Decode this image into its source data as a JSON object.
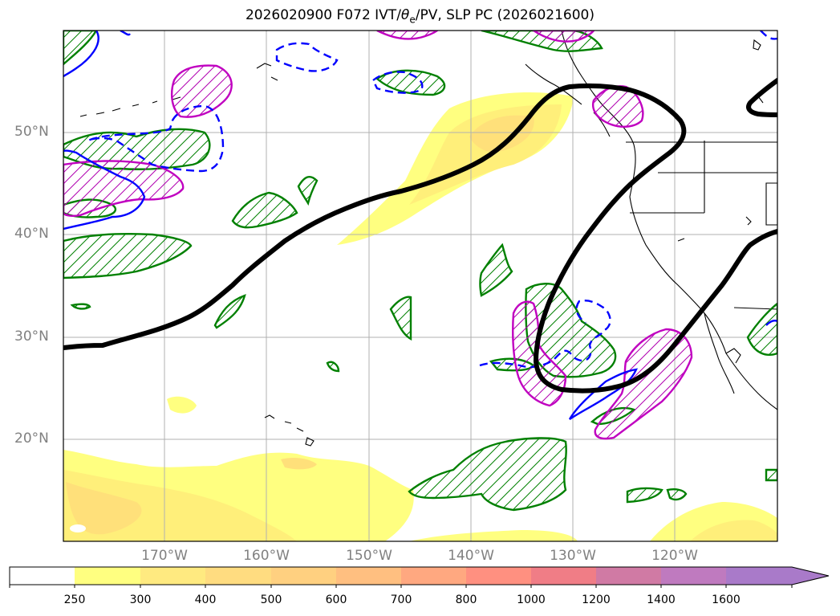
{
  "title": {
    "prefix": "2026020900 F072 IVT/",
    "theta": "θ",
    "theta_sub": "e",
    "suffix": "/PV, SLP PC (2026021600)"
  },
  "map": {
    "projection": "plate carree",
    "lon_range": [
      -180,
      -110
    ],
    "lat_range": [
      10,
      60
    ],
    "gridlines": true
  },
  "lat_labels": [
    "50°N",
    "40°N",
    "30°N",
    "20°N"
  ],
  "lon_labels": [
    "170°W",
    "160°W",
    "150°W",
    "140°W",
    "130°W",
    "120°W"
  ],
  "fields": {
    "ivt_fill": "yellow-orange filled contours (250–400)",
    "theta_e_contours": {
      "color": "#008000",
      "hatch": "/"
    },
    "pv_contours": {
      "color": "#c000c0",
      "hatch": "/"
    },
    "dashed_contours": {
      "color": "#0000ff"
    },
    "slp_pc_contour": {
      "color": "#000000"
    }
  },
  "colorbar": {
    "levels": [
      "250",
      "300",
      "400",
      "500",
      "600",
      "700",
      "800",
      "1000",
      "1200",
      "1400",
      "1600"
    ],
    "colors": [
      "#ffffff",
      "#ffff80",
      "#ffe680",
      "#ffd880",
      "#ffca80",
      "#ffb880",
      "#ffa080",
      "#ff8880",
      "#f0788a",
      "#d078a8",
      "#c078c0",
      "#a878c8"
    ],
    "extend": "max"
  }
}
